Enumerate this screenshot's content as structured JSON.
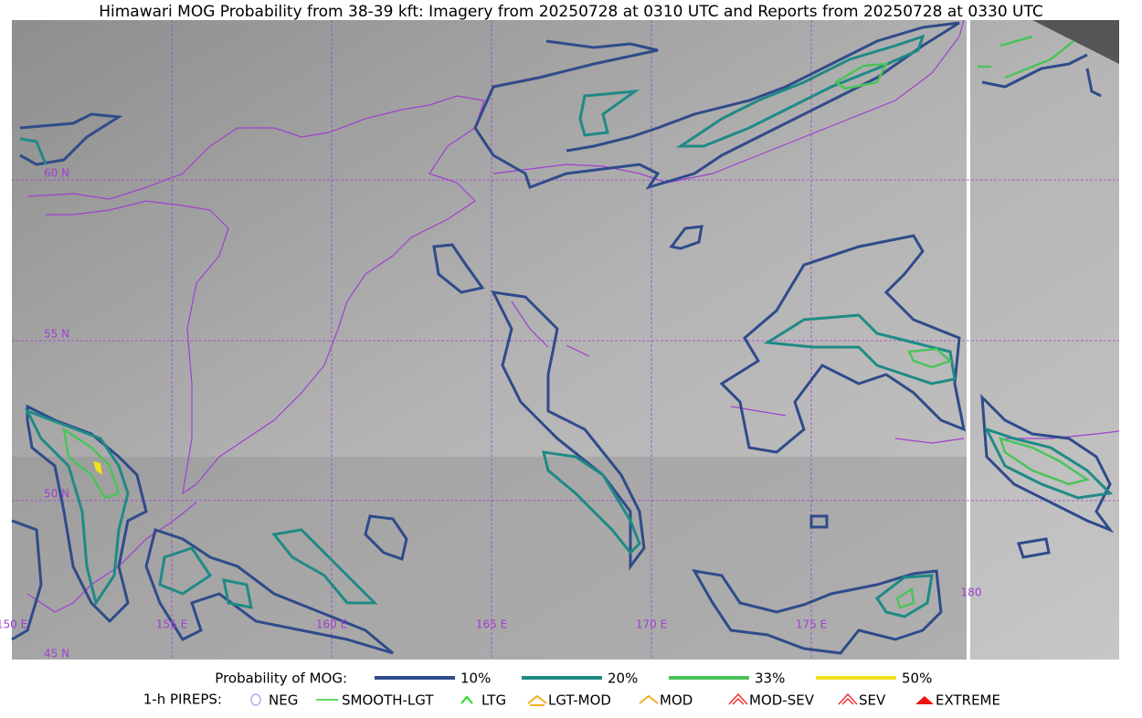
{
  "header": {
    "title": "Himawari MOG Probability from 38-39 kft: Imagery from 20250728 at 0310 UTC and Reports from 20250728 at 0330 UTC"
  },
  "map": {
    "lat_labels": [
      "60 N",
      "55 N",
      "50 N",
      "45 N"
    ],
    "lon_labels": [
      "150 E",
      "155 E",
      "160 E",
      "165 E",
      "170 E",
      "175 E",
      "180"
    ]
  },
  "legend": {
    "probability": {
      "title": "Probability of MOG:",
      "items": [
        {
          "label": "10%",
          "color": "#2f4b8a"
        },
        {
          "label": "20%",
          "color": "#1f8a85"
        },
        {
          "label": "33%",
          "color": "#4cc35a"
        },
        {
          "label": "50%",
          "color": "#f2e21e"
        }
      ]
    },
    "pireps": {
      "title": "1-h PIREPS:",
      "items": [
        {
          "label": "NEG",
          "color": "#b0b0f0"
        },
        {
          "label": "SMOOTH-LGT",
          "color": "#33cc33"
        },
        {
          "label": "LTG",
          "color": "#22dd22"
        },
        {
          "label": "LGT-MOD",
          "color": "#f0b020"
        },
        {
          "label": "MOD",
          "color": "#f0b020"
        },
        {
          "label": "MOD-SEV",
          "color": "#ee3333"
        },
        {
          "label": "SEV",
          "color": "#ee3333"
        },
        {
          "label": "EXTREME",
          "color": "#ee1111"
        }
      ]
    }
  }
}
